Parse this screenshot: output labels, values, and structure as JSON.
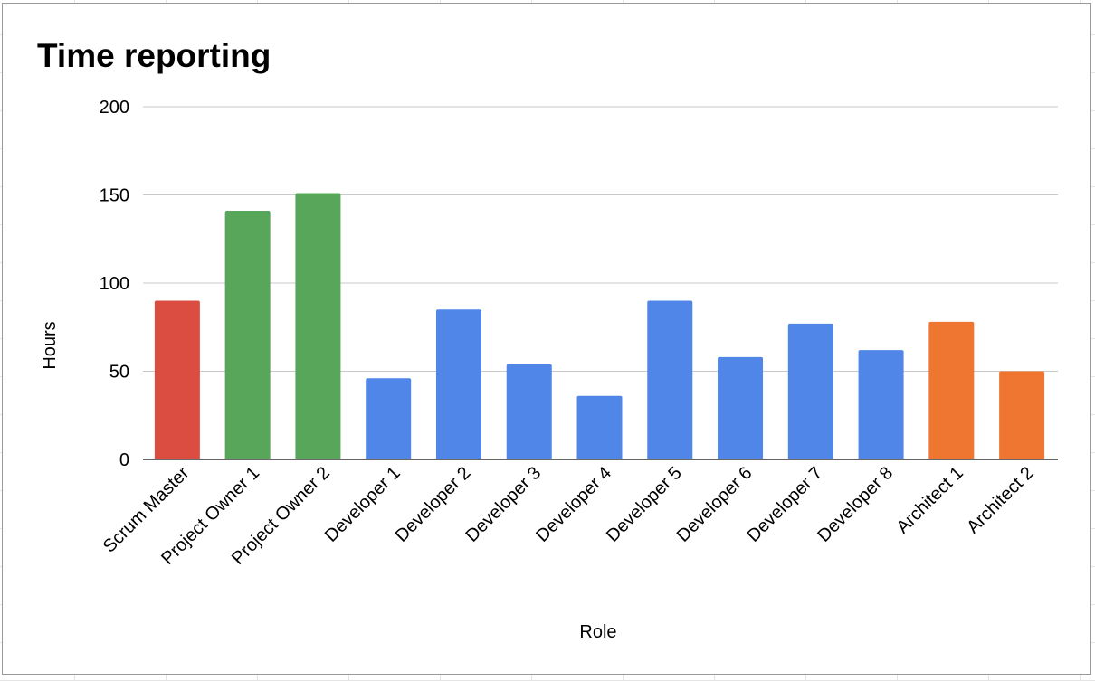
{
  "chart_data": {
    "type": "bar",
    "title": "Time reporting",
    "xlabel": "Role",
    "ylabel": "Hours",
    "ylim": [
      0,
      200
    ],
    "yticks": [
      "0",
      "50",
      "100",
      "150",
      "200"
    ],
    "grid": true,
    "legend": "none",
    "categories": [
      "Scrum Master",
      "Project Owner 1",
      "Project Owner 2",
      "Developer 1",
      "Developer 2",
      "Developer 3",
      "Developer 4",
      "Developer 5",
      "Developer 6",
      "Developer 7",
      "Developer 8",
      "Architect 1",
      "Architect 2"
    ],
    "values": [
      90,
      141,
      151,
      46,
      85,
      54,
      36,
      90,
      58,
      77,
      62,
      78,
      50
    ],
    "bar_colors": [
      "#db4d40",
      "#57a65a",
      "#57a65a",
      "#4f86e8",
      "#4f86e8",
      "#4f86e8",
      "#4f86e8",
      "#4f86e8",
      "#4f86e8",
      "#4f86e8",
      "#4f86e8",
      "#ef7630",
      "#ef7630"
    ]
  }
}
